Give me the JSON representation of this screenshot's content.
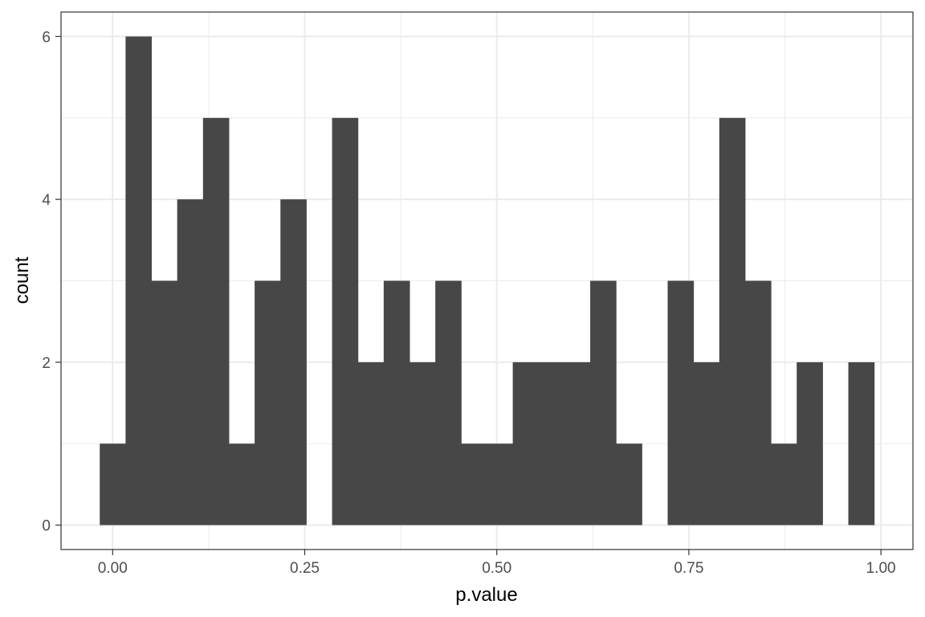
{
  "chart_data": {
    "type": "bar",
    "subtype": "histogram",
    "title": "",
    "xlabel": "p.value",
    "ylabel": "count",
    "bin_width": 0.0336,
    "first_bin_center": 0.0,
    "values": [
      1,
      6,
      3,
      4,
      5,
      1,
      3,
      4,
      0,
      5,
      2,
      3,
      2,
      3,
      1,
      1,
      2,
      2,
      2,
      3,
      1,
      0,
      3,
      2,
      5,
      3,
      1,
      2,
      0,
      2
    ],
    "xlim": [
      -0.0672,
      1.0417
    ],
    "ylim": [
      -0.3,
      6.3
    ],
    "x_ticks": [
      0,
      0.25,
      0.5,
      0.75,
      1.0
    ],
    "x_tick_labels": [
      "0.00",
      "0.25",
      "0.50",
      "0.75",
      "1.00"
    ],
    "y_ticks": [
      0,
      2,
      4,
      6
    ],
    "y_tick_labels": [
      "0",
      "2",
      "4",
      "6"
    ],
    "grid": true,
    "theme": "bw",
    "bar_color": "#474747",
    "grid_color": "#ebebeb",
    "panel_border_color": "#333333"
  }
}
